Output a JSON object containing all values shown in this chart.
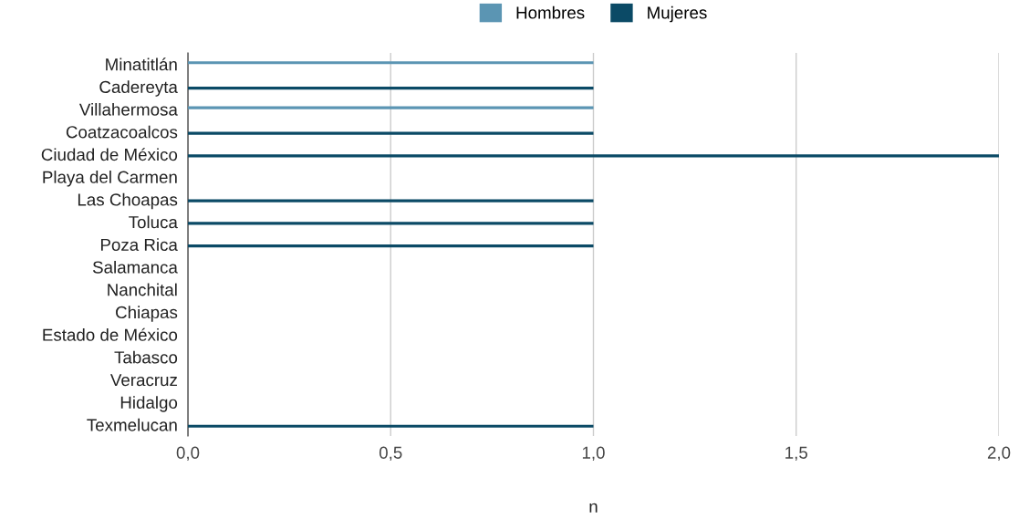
{
  "chart_data": {
    "type": "bar",
    "orientation": "horizontal",
    "xlabel": "n",
    "categories": [
      "Minatitlán",
      "Cadereyta",
      "Villahermosa",
      "Coatzacoalcos",
      "Ciudad de México",
      "Playa del Carmen",
      "Las Choapas",
      "Toluca",
      "Poza Rica",
      "Salamanca",
      "Nanchital",
      "Chiapas",
      "Estado de México",
      "Tabasco",
      "Veracruz",
      "Hidalgo",
      "Texmelucan"
    ],
    "series": [
      {
        "name": "Hombres",
        "color": "#5b95b3",
        "values": [
          1,
          0,
          1,
          0,
          0,
          0,
          0,
          0,
          0,
          0,
          0,
          0,
          0,
          0,
          0,
          0,
          0
        ]
      },
      {
        "name": "Mujeres",
        "color": "#0b4a66",
        "values": [
          0,
          1,
          0,
          1,
          2,
          0,
          1,
          1,
          1,
          0,
          0,
          0,
          0,
          0,
          0,
          0,
          1
        ]
      }
    ],
    "xlim": [
      0,
      2
    ],
    "xticks": [
      {
        "value": 0,
        "label": "0,0"
      },
      {
        "value": 0.5,
        "label": "0,5"
      },
      {
        "value": 1,
        "label": "1,0"
      },
      {
        "value": 1.5,
        "label": "1,5"
      },
      {
        "value": 2,
        "label": "2,0"
      }
    ],
    "grid": "x",
    "legend": "top"
  }
}
